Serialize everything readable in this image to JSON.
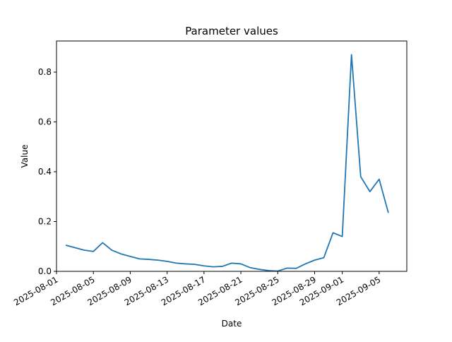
{
  "chart_data": {
    "type": "line",
    "title": "Parameter values",
    "xlabel": "Date",
    "ylabel": "Value",
    "x": [
      "2025-08-02",
      "2025-08-03",
      "2025-08-04",
      "2025-08-05",
      "2025-08-06",
      "2025-08-07",
      "2025-08-08",
      "2025-08-09",
      "2025-08-10",
      "2025-08-11",
      "2025-08-12",
      "2025-08-13",
      "2025-08-14",
      "2025-08-15",
      "2025-08-16",
      "2025-08-17",
      "2025-08-18",
      "2025-08-19",
      "2025-08-20",
      "2025-08-21",
      "2025-08-22",
      "2025-08-23",
      "2025-08-24",
      "2025-08-25",
      "2025-08-26",
      "2025-08-27",
      "2025-08-28",
      "2025-08-29",
      "2025-08-30",
      "2025-08-31",
      "2025-09-01",
      "2025-09-02",
      "2025-09-03",
      "2025-09-04",
      "2025-09-05",
      "2025-09-06"
    ],
    "series": [
      {
        "name": "Value",
        "color": "#1f77b4",
        "values": [
          0.105,
          0.095,
          0.085,
          0.08,
          0.115,
          0.085,
          0.07,
          0.06,
          0.05,
          0.048,
          0.045,
          0.04,
          0.033,
          0.03,
          0.028,
          0.022,
          0.018,
          0.02,
          0.033,
          0.03,
          0.015,
          0.008,
          0.003,
          0.001,
          0.013,
          0.012,
          0.03,
          0.045,
          0.055,
          0.155,
          0.14,
          0.87,
          0.38,
          0.32,
          0.37,
          0.235
        ]
      }
    ],
    "xlim": [
      "2025-08-01",
      "2025-09-08"
    ],
    "xticks": [
      "2025-08-01",
      "2025-08-05",
      "2025-08-09",
      "2025-08-13",
      "2025-08-17",
      "2025-08-21",
      "2025-08-25",
      "2025-08-29",
      "2025-09-01",
      "2025-09-05"
    ],
    "ylim": [
      0,
      0.925
    ],
    "yticks": [
      {
        "value": 0,
        "label": "0.0"
      },
      0.2,
      0.4,
      0.6,
      0.8
    ]
  }
}
